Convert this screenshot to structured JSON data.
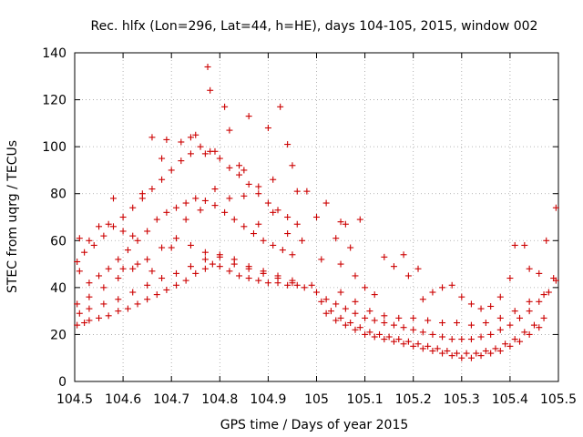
{
  "chart_data": {
    "type": "scatter",
    "title": "Rec. hlfx (Lon=296, Lat=44, h=HE), days 104-105, 2015, window 002",
    "xlabel": "GPS time / Days of year 2015",
    "ylabel": "STEC from uqrg / TECUs",
    "xlim": [
      104.5,
      105.5
    ],
    "ylim": [
      0,
      140
    ],
    "xticks": [
      "104.5",
      "104.6",
      "104.7",
      "104.8",
      "104.9",
      "105",
      "105.1",
      "105.2",
      "105.3",
      "105.4",
      "105.5"
    ],
    "yticks": [
      "0",
      "20",
      "40",
      "60",
      "80",
      "100",
      "120",
      "140"
    ],
    "grid": true,
    "marker": "plus",
    "color": "#cc0000",
    "series": [
      {
        "name": "",
        "points": [
          [
            104.505,
            24
          ],
          [
            104.52,
            25
          ],
          [
            104.53,
            26
          ],
          [
            104.55,
            27
          ],
          [
            104.57,
            28
          ],
          [
            104.59,
            30
          ],
          [
            104.61,
            31
          ],
          [
            104.63,
            33
          ],
          [
            104.65,
            35
          ],
          [
            104.67,
            37
          ],
          [
            104.69,
            39
          ],
          [
            104.71,
            41
          ],
          [
            104.73,
            43
          ],
          [
            104.75,
            46
          ],
          [
            104.77,
            48
          ],
          [
            104.785,
            50
          ],
          [
            104.8,
            49
          ],
          [
            104.82,
            47
          ],
          [
            104.84,
            45
          ],
          [
            104.86,
            44
          ],
          [
            104.88,
            43
          ],
          [
            104.9,
            42
          ],
          [
            104.92,
            42
          ],
          [
            104.94,
            41
          ],
          [
            104.96,
            41
          ],
          [
            104.975,
            40
          ],
          [
            104.51,
            29
          ],
          [
            104.53,
            31
          ],
          [
            104.56,
            33
          ],
          [
            104.59,
            35
          ],
          [
            104.62,
            38
          ],
          [
            104.65,
            41
          ],
          [
            104.68,
            44
          ],
          [
            104.71,
            46
          ],
          [
            104.74,
            49
          ],
          [
            104.77,
            52
          ],
          [
            104.8,
            54
          ],
          [
            104.83,
            52
          ],
          [
            104.86,
            49
          ],
          [
            104.89,
            47
          ],
          [
            104.92,
            45
          ],
          [
            104.95,
            43
          ],
          [
            104.505,
            33
          ],
          [
            104.53,
            36
          ],
          [
            104.56,
            40
          ],
          [
            104.59,
            44
          ],
          [
            104.62,
            48
          ],
          [
            104.65,
            52
          ],
          [
            104.68,
            57
          ],
          [
            104.71,
            61
          ],
          [
            104.74,
            58
          ],
          [
            104.77,
            55
          ],
          [
            104.8,
            53
          ],
          [
            104.83,
            50
          ],
          [
            104.86,
            48
          ],
          [
            104.89,
            46
          ],
          [
            104.92,
            44
          ],
          [
            104.95,
            42
          ],
          [
            104.51,
            47
          ],
          [
            104.53,
            42
          ],
          [
            104.55,
            45
          ],
          [
            104.57,
            48
          ],
          [
            104.59,
            52
          ],
          [
            104.61,
            56
          ],
          [
            104.63,
            60
          ],
          [
            104.65,
            64
          ],
          [
            104.67,
            69
          ],
          [
            104.69,
            72
          ],
          [
            104.71,
            74
          ],
          [
            104.73,
            76
          ],
          [
            104.75,
            78
          ],
          [
            104.77,
            77
          ],
          [
            104.79,
            75
          ],
          [
            104.81,
            72
          ],
          [
            104.83,
            69
          ],
          [
            104.85,
            66
          ],
          [
            104.87,
            63
          ],
          [
            104.89,
            60
          ],
          [
            104.91,
            58
          ],
          [
            104.93,
            56
          ],
          [
            104.95,
            54
          ],
          [
            104.505,
            51
          ],
          [
            104.52,
            55
          ],
          [
            104.54,
            58
          ],
          [
            104.56,
            62
          ],
          [
            104.58,
            66
          ],
          [
            104.6,
            70
          ],
          [
            104.62,
            74
          ],
          [
            104.64,
            78
          ],
          [
            104.66,
            82
          ],
          [
            104.68,
            86
          ],
          [
            104.7,
            90
          ],
          [
            104.72,
            94
          ],
          [
            104.74,
            97
          ],
          [
            104.76,
            100
          ],
          [
            104.78,
            98
          ],
          [
            104.8,
            95
          ],
          [
            104.82,
            91
          ],
          [
            104.84,
            88
          ],
          [
            104.86,
            84
          ],
          [
            104.88,
            80
          ],
          [
            104.9,
            76
          ],
          [
            104.92,
            73
          ],
          [
            104.94,
            70
          ],
          [
            104.96,
            67
          ],
          [
            104.51,
            61
          ],
          [
            104.53,
            60
          ],
          [
            104.55,
            66
          ],
          [
            104.57,
            67
          ],
          [
            104.58,
            78
          ],
          [
            104.6,
            64
          ],
          [
            104.62,
            62
          ],
          [
            104.64,
            80
          ],
          [
            104.66,
            104
          ],
          [
            104.68,
            95
          ],
          [
            104.69,
            103
          ],
          [
            104.72,
            102
          ],
          [
            104.74,
            104
          ],
          [
            104.75,
            105
          ],
          [
            104.77,
            97
          ],
          [
            104.775,
            134
          ],
          [
            104.78,
            124
          ],
          [
            104.79,
            98
          ],
          [
            104.81,
            117
          ],
          [
            104.82,
            107
          ],
          [
            104.84,
            92
          ],
          [
            104.85,
            90
          ],
          [
            104.86,
            113
          ],
          [
            104.88,
            83
          ],
          [
            104.9,
            108
          ],
          [
            104.91,
            86
          ],
          [
            104.925,
            117
          ],
          [
            104.94,
            101
          ],
          [
            104.95,
            92
          ],
          [
            104.96,
            81
          ],
          [
            104.98,
            81
          ],
          [
            104.6,
            48
          ],
          [
            104.63,
            50
          ],
          [
            104.66,
            47
          ],
          [
            104.7,
            57
          ],
          [
            104.73,
            69
          ],
          [
            104.76,
            73
          ],
          [
            104.79,
            82
          ],
          [
            104.82,
            78
          ],
          [
            104.85,
            79
          ],
          [
            104.88,
            67
          ],
          [
            104.91,
            72
          ],
          [
            104.94,
            63
          ],
          [
            104.97,
            60
          ],
          [
            104.99,
            41
          ],
          [
            105.0,
            38
          ],
          [
            105.02,
            35
          ],
          [
            105.04,
            33
          ],
          [
            105.06,
            31
          ],
          [
            105.08,
            29
          ],
          [
            105.1,
            27
          ],
          [
            105.12,
            26
          ],
          [
            105.14,
            25
          ],
          [
            105.16,
            24
          ],
          [
            105.18,
            23
          ],
          [
            105.2,
            22
          ],
          [
            105.22,
            21
          ],
          [
            105.24,
            20
          ],
          [
            105.26,
            19
          ],
          [
            105.28,
            18
          ],
          [
            105.3,
            18
          ],
          [
            105.32,
            18
          ],
          [
            105.34,
            19
          ],
          [
            105.36,
            20
          ],
          [
            105.38,
            22
          ],
          [
            105.4,
            24
          ],
          [
            105.42,
            27
          ],
          [
            105.44,
            30
          ],
          [
            105.46,
            34
          ],
          [
            105.48,
            38
          ],
          [
            105.495,
            43
          ],
          [
            105.01,
            34
          ],
          [
            105.03,
            30
          ],
          [
            105.05,
            27
          ],
          [
            105.07,
            25
          ],
          [
            105.09,
            23
          ],
          [
            105.11,
            21
          ],
          [
            105.13,
            20
          ],
          [
            105.15,
            19
          ],
          [
            105.17,
            18
          ],
          [
            105.19,
            17
          ],
          [
            105.21,
            16
          ],
          [
            105.23,
            15
          ],
          [
            105.25,
            14
          ],
          [
            105.27,
            13
          ],
          [
            105.29,
            12
          ],
          [
            105.31,
            12
          ],
          [
            105.33,
            12
          ],
          [
            105.35,
            13
          ],
          [
            105.37,
            14
          ],
          [
            105.39,
            16
          ],
          [
            105.41,
            18
          ],
          [
            105.43,
            21
          ],
          [
            105.45,
            24
          ],
          [
            105.47,
            27
          ],
          [
            105.02,
            29
          ],
          [
            105.04,
            26
          ],
          [
            105.06,
            24
          ],
          [
            105.08,
            22
          ],
          [
            105.1,
            20
          ],
          [
            105.12,
            19
          ],
          [
            105.14,
            18
          ],
          [
            105.16,
            17
          ],
          [
            105.18,
            16
          ],
          [
            105.2,
            15
          ],
          [
            105.22,
            14
          ],
          [
            105.24,
            13
          ],
          [
            105.26,
            12
          ],
          [
            105.28,
            11
          ],
          [
            105.3,
            10
          ],
          [
            105.32,
            10
          ],
          [
            105.34,
            11
          ],
          [
            105.36,
            12
          ],
          [
            105.38,
            13
          ],
          [
            105.4,
            15
          ],
          [
            105.42,
            17
          ],
          [
            105.44,
            20
          ],
          [
            105.46,
            23
          ],
          [
            105.0,
            70
          ],
          [
            105.01,
            52
          ],
          [
            105.02,
            76
          ],
          [
            105.04,
            61
          ],
          [
            105.05,
            68
          ],
          [
            105.06,
            67
          ],
          [
            105.07,
            57
          ],
          [
            105.09,
            69
          ],
          [
            105.05,
            50
          ],
          [
            105.08,
            45
          ],
          [
            105.1,
            40
          ],
          [
            105.12,
            37
          ],
          [
            105.14,
            53
          ],
          [
            105.16,
            49
          ],
          [
            105.18,
            54
          ],
          [
            105.19,
            45
          ],
          [
            105.21,
            48
          ],
          [
            105.22,
            35
          ],
          [
            105.24,
            38
          ],
          [
            105.26,
            40
          ],
          [
            105.28,
            41
          ],
          [
            105.3,
            36
          ],
          [
            105.32,
            33
          ],
          [
            105.34,
            31
          ],
          [
            105.36,
            32
          ],
          [
            105.38,
            36
          ],
          [
            105.4,
            44
          ],
          [
            105.41,
            58
          ],
          [
            105.43,
            58
          ],
          [
            105.44,
            48
          ],
          [
            105.46,
            46
          ],
          [
            105.475,
            60
          ],
          [
            105.49,
            44
          ],
          [
            105.495,
            74
          ],
          [
            105.05,
            38
          ],
          [
            105.08,
            34
          ],
          [
            105.11,
            30
          ],
          [
            105.14,
            28
          ],
          [
            105.17,
            27
          ],
          [
            105.2,
            27
          ],
          [
            105.23,
            26
          ],
          [
            105.26,
            25
          ],
          [
            105.29,
            25
          ],
          [
            105.32,
            24
          ],
          [
            105.35,
            25
          ],
          [
            105.38,
            27
          ],
          [
            105.41,
            30
          ],
          [
            105.44,
            34
          ],
          [
            105.47,
            37
          ]
        ]
      }
    ]
  }
}
